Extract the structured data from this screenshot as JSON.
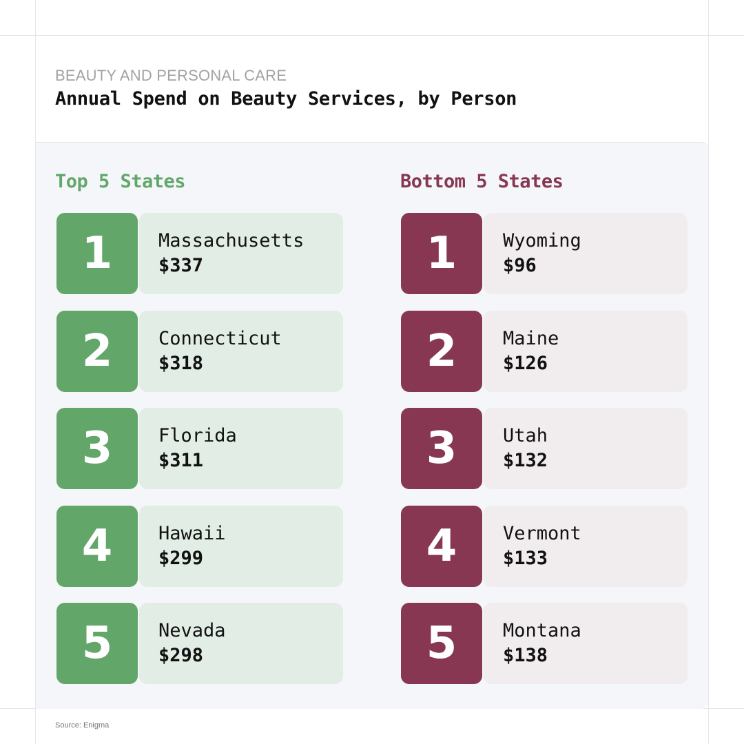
{
  "header": {
    "eyebrow": "BEAUTY AND PERSONAL CARE",
    "title": "Annual Spend on Beauty Services, by Person"
  },
  "top": {
    "heading": "Top 5 States",
    "color": "#62a769",
    "light_color": "#e1ede5",
    "items": [
      {
        "rank": "1",
        "state": "Massachusetts",
        "amount": "$337"
      },
      {
        "rank": "2",
        "state": "Connecticut",
        "amount": "$318"
      },
      {
        "rank": "3",
        "state": "Florida",
        "amount": "$311"
      },
      {
        "rank": "4",
        "state": "Hawaii",
        "amount": "$299"
      },
      {
        "rank": "5",
        "state": "Nevada",
        "amount": "$298"
      }
    ]
  },
  "bottom": {
    "heading": "Bottom 5 States",
    "color": "#873752",
    "light_color": "#f1ecee",
    "items": [
      {
        "rank": "1",
        "state": "Wyoming",
        "amount": "$96"
      },
      {
        "rank": "2",
        "state": "Maine",
        "amount": "$126"
      },
      {
        "rank": "3",
        "state": "Utah",
        "amount": "$132"
      },
      {
        "rank": "4",
        "state": "Vermont",
        "amount": "$133"
      },
      {
        "rank": "5",
        "state": "Montana",
        "amount": "$138"
      }
    ]
  },
  "footer": {
    "source": "Source: Enigma"
  }
}
